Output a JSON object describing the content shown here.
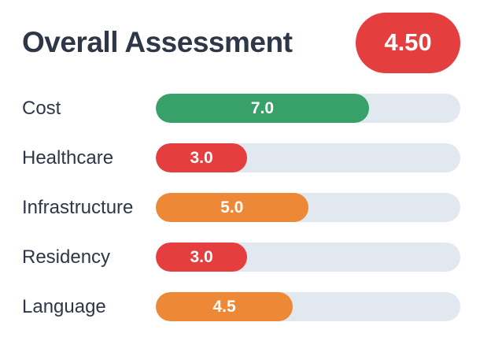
{
  "colors": {
    "red": "#e53e3e",
    "green": "#38a169",
    "orange": "#ed8936",
    "track": "#e2e8f0",
    "text": "#2d3748",
    "badge_text": "#ffffff"
  },
  "header": {
    "title": "Overall Assessment",
    "overall_score": "4.50"
  },
  "rows": [
    {
      "label": "Cost",
      "value": "7.0",
      "color": "#38a169",
      "pct": 70
    },
    {
      "label": "Healthcare",
      "value": "3.0",
      "color": "#e53e3e",
      "pct": 30
    },
    {
      "label": "Infrastructure",
      "value": "5.0",
      "color": "#ed8936",
      "pct": 50
    },
    {
      "label": "Residency",
      "value": "3.0",
      "color": "#e53e3e",
      "pct": 30
    },
    {
      "label": "Language",
      "value": "4.5",
      "color": "#ed8936",
      "pct": 45
    }
  ],
  "chart_data": {
    "type": "bar",
    "orientation": "horizontal",
    "title": "Overall Assessment",
    "overall_score": 4.5,
    "categories": [
      "Cost",
      "Healthcare",
      "Infrastructure",
      "Residency",
      "Language"
    ],
    "values": [
      7.0,
      3.0,
      5.0,
      3.0,
      4.5
    ],
    "value_labels": [
      "7.0",
      "3.0",
      "5.0",
      "3.0",
      "4.5"
    ],
    "bar_colors": [
      "#38a169",
      "#e53e3e",
      "#ed8936",
      "#e53e3e",
      "#ed8936"
    ],
    "xlim": [
      0,
      10
    ],
    "grid": false,
    "legend": false
  }
}
